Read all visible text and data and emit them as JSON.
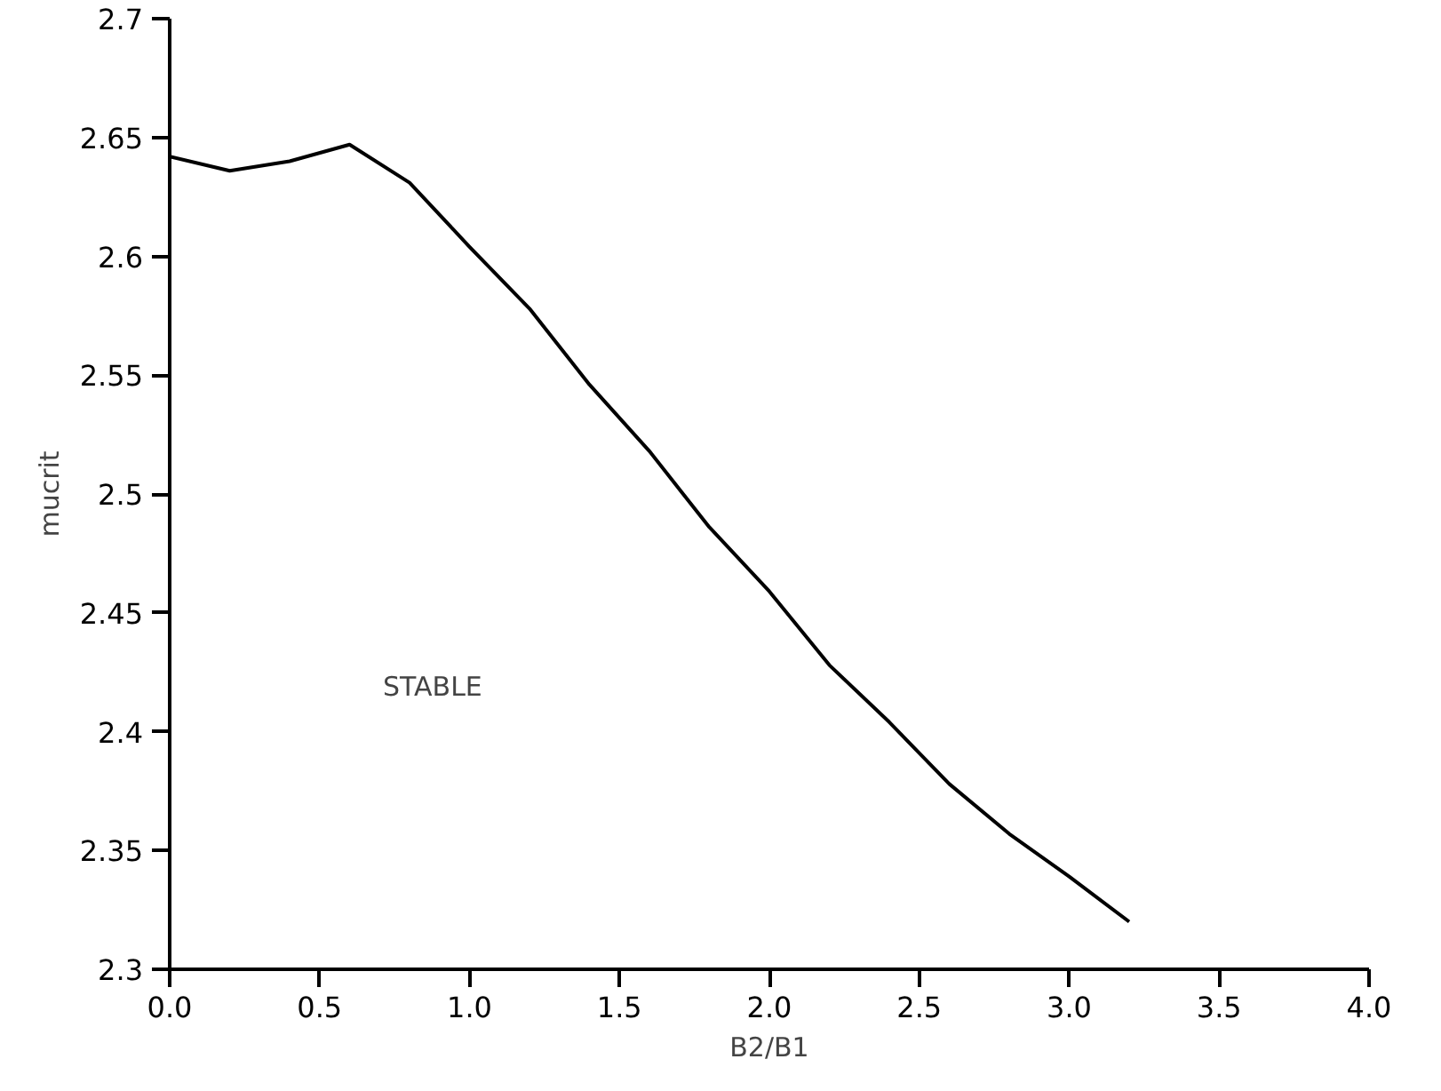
{
  "chart_data": {
    "type": "line",
    "xlabel": "B2/B1",
    "ylabel": "mucrit",
    "x": [
      0.0,
      0.2,
      0.4,
      0.6,
      0.8,
      1.0,
      1.2,
      1.4,
      1.6,
      1.8,
      2.0,
      2.2,
      2.4,
      2.6,
      2.8,
      3.0,
      3.2
    ],
    "series": [
      {
        "color": "#000000",
        "values": [
          2.642,
          2.636,
          2.64,
          2.647,
          2.631,
          2.604,
          2.578,
          2.546,
          2.518,
          2.486,
          2.459,
          2.428,
          2.404,
          2.378,
          2.357,
          2.339,
          2.32
        ]
      }
    ],
    "xlim": [
      0.0,
      4.0
    ],
    "ylim": [
      2.3,
      2.7
    ],
    "xticks": [
      {
        "value": 0,
        "label": "0.0"
      },
      {
        "value": 0.5,
        "label": "0.5"
      },
      {
        "value": 1,
        "label": "1.0"
      },
      {
        "value": 1.5,
        "label": "1.5"
      },
      {
        "value": 2,
        "label": "2.0"
      },
      {
        "value": 2.5,
        "label": "2.5"
      },
      {
        "value": 3,
        "label": "3.0"
      },
      {
        "value": 3.5,
        "label": "3.5"
      },
      {
        "value": 4,
        "label": "4.0"
      }
    ],
    "yticks": [
      2.3,
      2.35,
      2.4,
      2.45,
      2.5,
      2.55,
      2.6,
      2.65,
      2.7
    ],
    "annotations": [
      "STABLE"
    ],
    "grid": false,
    "marker": "none",
    "line_style": "solid"
  }
}
